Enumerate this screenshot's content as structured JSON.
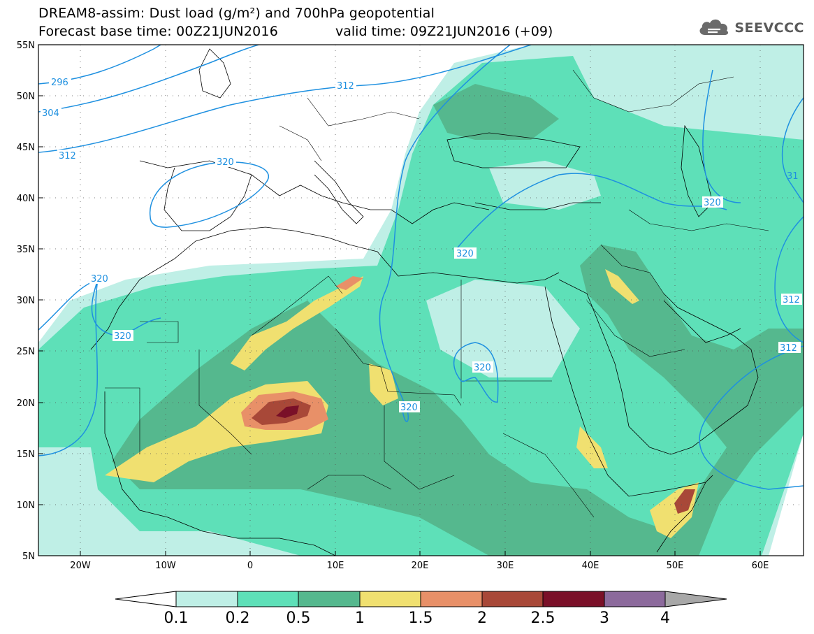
{
  "header": {
    "title_line1": "DREAM8-assim: Dust load (g/m²) and 700hPa geopotential",
    "title_line2_left": "Forecast base time: 00Z21JUN2016",
    "title_line2_right": "valid time: 09Z21JUN2016 (+09)"
  },
  "logo": {
    "text": "SEEVCCC",
    "icon": "cloud-icon"
  },
  "map": {
    "lat_labels": [
      "55N",
      "50N",
      "45N",
      "40N",
      "35N",
      "30N",
      "25N",
      "20N",
      "15N",
      "10N",
      "5N"
    ],
    "lon_labels": [
      "20W",
      "10W",
      "0",
      "10E",
      "20E",
      "30E",
      "40E",
      "50E",
      "60E"
    ],
    "contour_labels": [
      "296",
      "304",
      "312",
      "312",
      "320",
      "320",
      "320",
      "320",
      "320",
      "320",
      "312",
      "312",
      "31",
      "320"
    ],
    "contour_color": "#1e90e0"
  },
  "colorbar": {
    "levels": [
      "0.1",
      "0.2",
      "0.5",
      "1",
      "1.5",
      "2",
      "2.5",
      "3",
      "4"
    ],
    "colors": [
      "#ffffff",
      "#bfefe6",
      "#5ee0b8",
      "#55b88e",
      "#f0e070",
      "#e89068",
      "#a84838",
      "#7a1028",
      "#8c6a9c",
      "#a8a8a8"
    ]
  }
}
